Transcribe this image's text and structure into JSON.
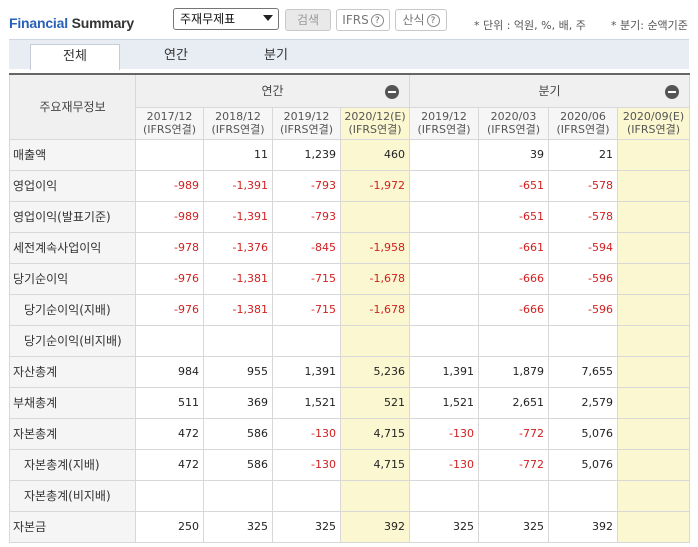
{
  "header": {
    "title_part1": "Financial",
    "title_part2": "Summary",
    "select_value": "주재무제표",
    "search_label": "검색",
    "ifrs_label": "IFRS",
    "calc_label": "산식",
    "help_glyph": "?",
    "unit_note": "* 단위 : 억원, %, 배, 주",
    "quarter_note": "* 분기: 순액기준"
  },
  "tabs": [
    "전체",
    "연간",
    "분기"
  ],
  "table": {
    "row_header": "주요재무정보",
    "group_annual": "연간",
    "group_quarterly": "분기",
    "columns": [
      {
        "period": "2017/12",
        "basis": "(IFRS연결)"
      },
      {
        "period": "2018/12",
        "basis": "(IFRS연결)"
      },
      {
        "period": "2019/12",
        "basis": "(IFRS연결)"
      },
      {
        "period": "2020/12(E)",
        "basis": "(IFRS연결)"
      },
      {
        "period": "2019/12",
        "basis": "(IFRS연결)"
      },
      {
        "period": "2020/03",
        "basis": "(IFRS연결)"
      },
      {
        "period": "2020/06",
        "basis": "(IFRS연결)"
      },
      {
        "period": "2020/09(E)",
        "basis": "(IFRS연결)"
      }
    ],
    "rows": [
      {
        "label": "매출액",
        "sub": false,
        "values": [
          "",
          "11",
          "1,239",
          "460",
          "",
          "39",
          "21",
          ""
        ]
      },
      {
        "label": "영업이익",
        "sub": false,
        "values": [
          "-989",
          "-1,391",
          "-793",
          "-1,972",
          "",
          "-651",
          "-578",
          ""
        ]
      },
      {
        "label": "영업이익(발표기준)",
        "sub": false,
        "values": [
          "-989",
          "-1,391",
          "-793",
          "",
          "",
          "-651",
          "-578",
          ""
        ]
      },
      {
        "label": "세전계속사업이익",
        "sub": false,
        "values": [
          "-978",
          "-1,376",
          "-845",
          "-1,958",
          "",
          "-661",
          "-594",
          ""
        ]
      },
      {
        "label": "당기순이익",
        "sub": false,
        "values": [
          "-976",
          "-1,381",
          "-715",
          "-1,678",
          "",
          "-666",
          "-596",
          ""
        ]
      },
      {
        "label": "당기순이익(지배)",
        "sub": true,
        "values": [
          "-976",
          "-1,381",
          "-715",
          "-1,678",
          "",
          "-666",
          "-596",
          ""
        ]
      },
      {
        "label": "당기순이익(비지배)",
        "sub": true,
        "values": [
          "",
          "",
          "",
          "",
          "",
          "",
          "",
          ""
        ]
      },
      {
        "label": "자산총계",
        "sub": false,
        "values": [
          "984",
          "955",
          "1,391",
          "5,236",
          "1,391",
          "1,879",
          "7,655",
          ""
        ]
      },
      {
        "label": "부채총계",
        "sub": false,
        "values": [
          "511",
          "369",
          "1,521",
          "521",
          "1,521",
          "2,651",
          "2,579",
          ""
        ]
      },
      {
        "label": "자본총계",
        "sub": false,
        "values": [
          "472",
          "586",
          "-130",
          "4,715",
          "-130",
          "-772",
          "5,076",
          ""
        ]
      },
      {
        "label": "자본총계(지배)",
        "sub": true,
        "values": [
          "472",
          "586",
          "-130",
          "4,715",
          "-130",
          "-772",
          "5,076",
          ""
        ]
      },
      {
        "label": "자본총계(비지배)",
        "sub": true,
        "values": [
          "",
          "",
          "",
          "",
          "",
          "",
          "",
          ""
        ]
      },
      {
        "label": "자본금",
        "sub": false,
        "values": [
          "250",
          "325",
          "325",
          "392",
          "325",
          "325",
          "392",
          ""
        ]
      }
    ]
  },
  "colors": {
    "negative": "#d21f1f",
    "projection_bg": "#fbf7d0",
    "title_blue": "#2a61b8"
  }
}
